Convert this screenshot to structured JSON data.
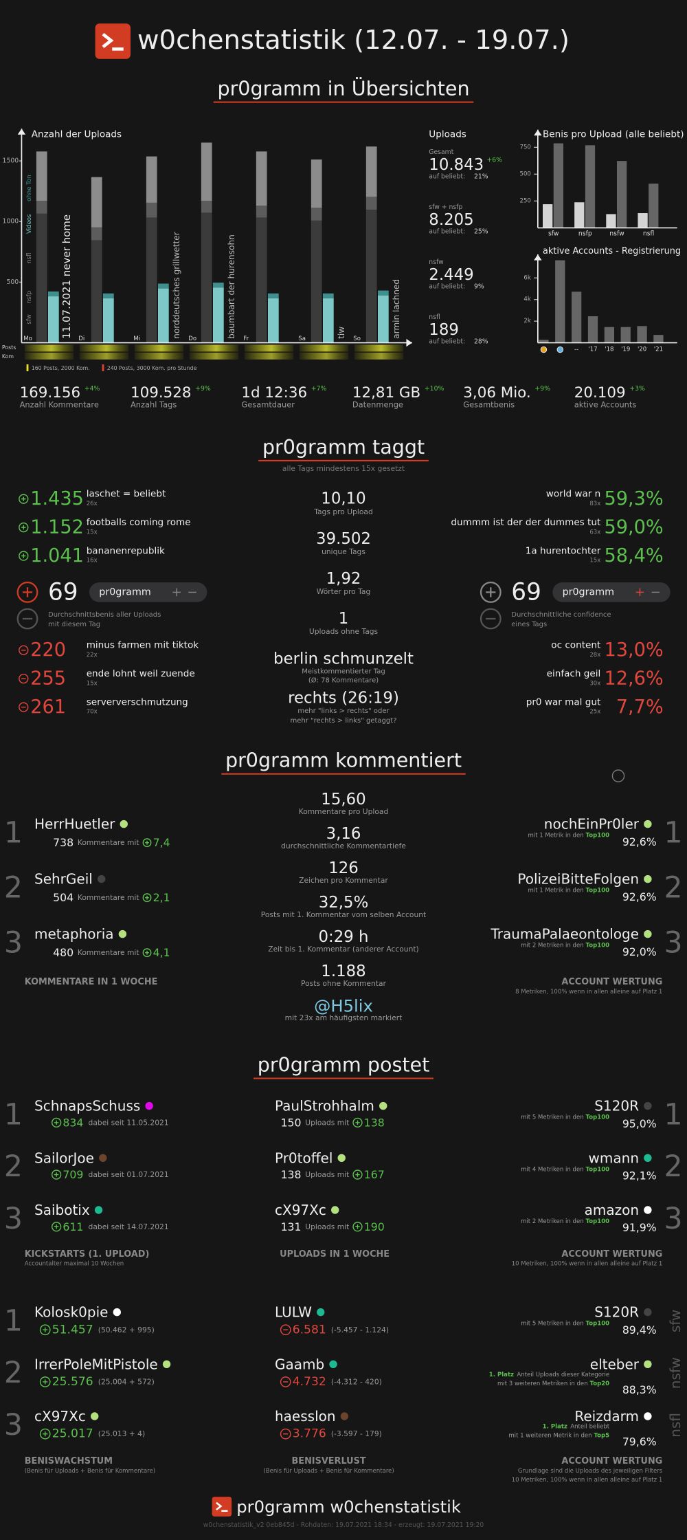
{
  "header": {
    "title": "w0chenstatistik (12.07. - 19.07.)"
  },
  "chart_data": [
    {
      "type": "bar",
      "title": "Anzahl der Uploads",
      "categories": [
        "Mo",
        "Di",
        "Mi",
        "Do",
        "Fr",
        "Sa",
        "So"
      ],
      "series": [
        {
          "name": "sfw",
          "color": "#3b3b3b",
          "stack": "posts",
          "values": [
            1065,
            846,
            1033,
            1073,
            1033,
            1008,
            1098
          ]
        },
        {
          "name": "nsfp",
          "color": "#5c5c5c",
          "stack": "posts",
          "values": [
            106,
            106,
            122,
            98,
            98,
            106,
            106
          ]
        },
        {
          "name": "nsfl",
          "color": "#8c8c8c",
          "stack": "posts",
          "values": [
            407,
            415,
            382,
            480,
            447,
            398,
            415
          ]
        },
        {
          "name": "Videos",
          "color": "#7ec8c8",
          "stack": "videos",
          "values": [
            383,
            367,
            448,
            456,
            367,
            367,
            391
          ]
        },
        {
          "name": "ohne Ton",
          "color": "#3f8f8f",
          "stack": "videos",
          "values": [
            40,
            40,
            40,
            40,
            40,
            40,
            40
          ]
        }
      ],
      "annotations": [
        "11.07.2021 never home",
        null,
        "norddeutsches grillwetter",
        "baumbart der hurensohn",
        null,
        "tiw",
        "armin lachned"
      ],
      "ylim": [
        0,
        1750
      ],
      "yticks": [
        500,
        1000,
        1500
      ],
      "heat_rows": [
        "Posts",
        "Kom"
      ],
      "heat_legend": [
        "160 Posts, 2000 Kom.",
        "240 Posts, 3000 Kom. pro Stunde"
      ]
    },
    {
      "type": "bar",
      "title": "Benis pro Upload (alle beliebt)",
      "categories": [
        "sfw",
        "nsfp",
        "nsfw",
        "nsfl"
      ],
      "series": [
        {
          "name": "alle",
          "color": "#d4d4d4",
          "values": [
            220,
            238,
            128,
            137
          ]
        },
        {
          "name": "beliebt",
          "color": "#666666",
          "values": [
            787,
            769,
            623,
            412
          ]
        }
      ],
      "ylim": [
        0,
        900
      ],
      "yticks": [
        250,
        500,
        750
      ]
    },
    {
      "type": "bar",
      "title": "aktive Accounts - Registrierung",
      "categories": [
        null,
        null,
        "--",
        "'17",
        "'18",
        "'19",
        "'20",
        "'21"
      ],
      "values": [
        270,
        7636,
        4727,
        2455,
        1455,
        1455,
        1545,
        727
      ],
      "color": "#666666",
      "ylim": [
        0,
        8000
      ],
      "yticks": [
        {
          "value": 2000,
          "label": "2k"
        },
        {
          "value": 4000,
          "label": "4k"
        },
        {
          "value": 6000,
          "label": "6k"
        }
      ]
    }
  ],
  "overview": {
    "heading": "pr0gramm in Übersichten",
    "uploads": {
      "title": "Uploads",
      "items": [
        {
          "label": "Gesamt",
          "value": "10.843",
          "change": "+6%",
          "beliebt_label": "auf beliebt:",
          "beliebt": "21%"
        },
        {
          "label": "sfw + nsfp",
          "value": "8.205",
          "beliebt_label": "auf beliebt:",
          "beliebt": "25%"
        },
        {
          "label": "nsfw",
          "value": "2.449",
          "beliebt_label": "auf beliebt:",
          "beliebt": "9%"
        },
        {
          "label": "nsfl",
          "value": "189",
          "beliebt_label": "auf beliebt:",
          "beliebt": "28%"
        }
      ]
    },
    "stats": [
      {
        "value": "169.156",
        "change": "+4%",
        "label": "Anzahl Kommentare"
      },
      {
        "value": "109.528",
        "change": "+9%",
        "label": "Anzahl Tags"
      },
      {
        "value": "1d 12:36",
        "change": "+7%",
        "label": "Gesamtdauer"
      },
      {
        "value": "12,81 GB",
        "change": "+10%",
        "label": "Datenmenge"
      },
      {
        "value": "3,06 Mio.",
        "change": "+9%",
        "label": "Gesamtbenis"
      },
      {
        "value": "20.109",
        "change": "+3%",
        "label": "aktive Accounts"
      }
    ]
  },
  "tags": {
    "heading": "pr0gramm taggt",
    "subtitle": "alle Tags mindestens 15x gesetzt",
    "top_benis": [
      {
        "value": "1.435",
        "tag": "laschet = beliebt",
        "count": "26x"
      },
      {
        "value": "1.152",
        "tag": "footballs coming rome",
        "count": "15x"
      },
      {
        "value": "1.041",
        "tag": "bananenrepublik",
        "count": "16x"
      }
    ],
    "benis_filter": {
      "value": "69",
      "tag": "pr0gramm",
      "desc": [
        "Durchschnittsbenis aller Uploads",
        "mit diesem Tag"
      ]
    },
    "low_benis": [
      {
        "value": "220",
        "tag": "minus farmen mit tiktok",
        "count": "22x"
      },
      {
        "value": "255",
        "tag": "ende lohnt weil zuende",
        "count": "15x"
      },
      {
        "value": "261",
        "tag": "serververschmutzung",
        "count": "70x"
      }
    ],
    "center": [
      {
        "value": "10,10",
        "label": "Tags pro Upload"
      },
      {
        "value": "39.502",
        "label": "unique Tags"
      },
      {
        "value": "1,92",
        "label": "Wörter pro Tag"
      },
      {
        "value": "1",
        "label": "Uploads ohne Tags"
      }
    ],
    "most_commented": {
      "value": "berlin schmunzelt",
      "label": "Meistkommentierter Tag",
      "note": "(Ø: 78 Kommentare)"
    },
    "direction": {
      "value": "rechts (26:19)",
      "notes": [
        "mehr \"links > rechts\" oder",
        "mehr \"rechts > links\" getaggt?"
      ]
    },
    "top_conf": [
      {
        "value": "59,3%",
        "tag": "world war n",
        "count": "83x"
      },
      {
        "value": "59,0%",
        "tag": "dummm ist der der dummes tut",
        "count": "63x"
      },
      {
        "value": "58,4%",
        "tag": "1a hurentochter",
        "count": "15x"
      }
    ],
    "conf_filter": {
      "value": "69",
      "tag": "pr0gramm",
      "desc": [
        "Durchschnittliche confidence",
        "eines Tags"
      ]
    },
    "low_conf": [
      {
        "value": "13,0%",
        "tag": "oc content",
        "count": "28x"
      },
      {
        "value": "12,6%",
        "tag": "einfach geil",
        "count": "30x"
      },
      {
        "value": "7,7%",
        "tag": "pr0 war mal gut",
        "count": "25x"
      }
    ]
  },
  "comments": {
    "heading": "pr0gramm kommentiert",
    "top": [
      {
        "rank": "1",
        "name": "HerrHuetler",
        "color": "#b5e07f",
        "count": "738",
        "label": "Kommentare mit",
        "benis": "7,4"
      },
      {
        "rank": "2",
        "name": "SehrGeil",
        "color": "#444444",
        "count": "504",
        "label": "Kommentare mit",
        "benis": "2,1"
      },
      {
        "rank": "3",
        "name": "metaphoria",
        "color": "#b5e07f",
        "count": "480",
        "label": "Kommentare mit",
        "benis": "4,1"
      }
    ],
    "top_footer": "KOMMENTARE IN 1 WOCHE",
    "center": [
      {
        "value": "15,60",
        "label": "Kommentare pro Upload"
      },
      {
        "value": "3,16",
        "label": "durchschnittliche Kommentartiefe"
      },
      {
        "value": "126",
        "label": "Zeichen pro Kommentar"
      },
      {
        "value": "32,5%",
        "label": "Posts mit 1. Kommentar vom selben Account"
      },
      {
        "value": "0:29 h",
        "label": "Zeit bis 1. Kommentar (anderer Account)"
      },
      {
        "value": "1.188",
        "label": "Posts ohne Kommentar"
      },
      {
        "value": "@H5lix",
        "label": "mit 23x am häufigsten markiert"
      }
    ],
    "rating": [
      {
        "rank": "1",
        "name": "nochEinPr0ler",
        "color": "#b5e07f",
        "note": "mit 1 Metrik in den",
        "badge": "Top100",
        "value": "92,6%"
      },
      {
        "rank": "2",
        "name": "PolizeiBitteFolgen",
        "color": "#b5e07f",
        "note": "mit 1 Metrik in den",
        "badge": "Top100",
        "value": "92,6%"
      },
      {
        "rank": "3",
        "name": "TraumaPalaeontologe",
        "color": "#b5e07f",
        "note": "mit 2 Metriken in den",
        "badge": "Top100",
        "value": "92,0%"
      }
    ],
    "rating_footer": {
      "title": "ACCOUNT WERTUNG",
      "notes": [
        "8 Metriken, 100% wenn in allen alleine auf Platz 1"
      ]
    }
  },
  "posts": {
    "heading": "pr0gramm postet",
    "kickstarts": {
      "title": "KICKSTARTS (1. UPLOAD)",
      "note": "Accountalter maximal 10 Wochen",
      "items": [
        {
          "rank": "1",
          "name": "SchnapsSchuss",
          "color": "#e108e9",
          "benis": "834",
          "note": "dabei seit 11.05.2021"
        },
        {
          "rank": "2",
          "name": "SailorJoe",
          "color": "#6c432b",
          "benis": "709",
          "note": "dabei seit 01.07.2021"
        },
        {
          "rank": "3",
          "name": "Saibotix",
          "color": "#1cb992",
          "benis": "611",
          "note": "dabei seit 14.07.2021"
        }
      ]
    },
    "uploads": {
      "title": "UPLOADS IN 1 WOCHE",
      "items": [
        {
          "name": "PaulStrohhalm",
          "color": "#b5e07f",
          "count": "150",
          "label": "Uploads mit",
          "benis": "138"
        },
        {
          "name": "Pr0toffel",
          "color": "#b5e07f",
          "count": "138",
          "label": "Uploads mit",
          "benis": "167"
        },
        {
          "name": "cX97Xc",
          "color": "#b5e07f",
          "count": "131",
          "label": "Uploads mit",
          "benis": "190"
        }
      ]
    },
    "rating": {
      "title": "ACCOUNT WERTUNG",
      "notes": [
        "10 Metriken, 100% wenn in allen alleine auf Platz 1"
      ],
      "items": [
        {
          "rank": "1",
          "name": "S120R",
          "color": "#444444",
          "note": "mit 5 Metriken in den",
          "badge": "Top100",
          "value": "95,0%"
        },
        {
          "rank": "2",
          "name": "wmann",
          "color": "#1cb992",
          "note": "mit 4 Metriken in den",
          "badge": "Top100",
          "value": "92,1%"
        },
        {
          "rank": "3",
          "name": "amazon",
          "color": "#ffffff",
          "note": "mit 2 Metriken in den",
          "badge": "Top100",
          "value": "91,9%"
        }
      ]
    },
    "growth": {
      "title": "BENISWACHSTUM",
      "note": "(Benis für Uploads + Benis für Kommentare)",
      "items": [
        {
          "rank": "1",
          "name": "Kolosk0pie",
          "color": "#ffffff",
          "benis": "51.457",
          "detail": "(50.462 + 995)"
        },
        {
          "rank": "2",
          "name": "IrrerPoleMitPistole",
          "color": "#b5e07f",
          "benis": "25.576",
          "detail": "(25.004 + 572)"
        },
        {
          "rank": "3",
          "name": "cX97Xc",
          "color": "#b5e07f",
          "benis": "25.017",
          "detail": "(25.013 + 4)"
        }
      ]
    },
    "loss": {
      "title": "BENISVERLUST",
      "note": "(Benis für Uploads + Benis für Kommentare)",
      "items": [
        {
          "name": "LULW",
          "color": "#1cb992",
          "benis": "6.581",
          "detail": "(-5.457 - 1.124)"
        },
        {
          "name": "Gaamb",
          "color": "#1cb992",
          "benis": "4.732",
          "detail": "(-4.312 - 420)"
        },
        {
          "name": "haesslon",
          "color": "#6c432b",
          "benis": "3.776",
          "detail": "(-3.597 - 179)"
        }
      ]
    },
    "filter_rating": {
      "title": "ACCOUNT WERTUNG",
      "notes": [
        "Grundlage sind die Uploads des jeweiligen Filters",
        "10 Metriken, 100% wenn in allen alleine auf Platz 1"
      ],
      "items": [
        {
          "name": "S120R",
          "color": "#444444",
          "filter": "sfw",
          "note": "mit 5 Metriken in den",
          "badge": "Top100",
          "value": "89,4%"
        },
        {
          "name": "elteber",
          "color": "#b5e07f",
          "filter": "nsfw",
          "place": "1. Platz",
          "place_note": "Anteil Uploads dieser Kategorie",
          "note": "mit 3 weiteren Metriken in den",
          "badge": "Top20",
          "value": "88,3%"
        },
        {
          "name": "Reizdarm",
          "color": "#ffffff",
          "filter": "nsfl",
          "place": "1. Platz",
          "place_note": "Anteil beliebt",
          "note": "mit 1 weiteren Metrik in den",
          "badge": "Top5",
          "value": "79,6%"
        }
      ]
    }
  },
  "footer": {
    "title": "pr0gramm w0chenstatistik",
    "meta": "w0chenstatistik_v2 0eb845d - Rohdaten: 19.07.2021 18:34 - erzeugt: 19.07.2021 19:20"
  }
}
